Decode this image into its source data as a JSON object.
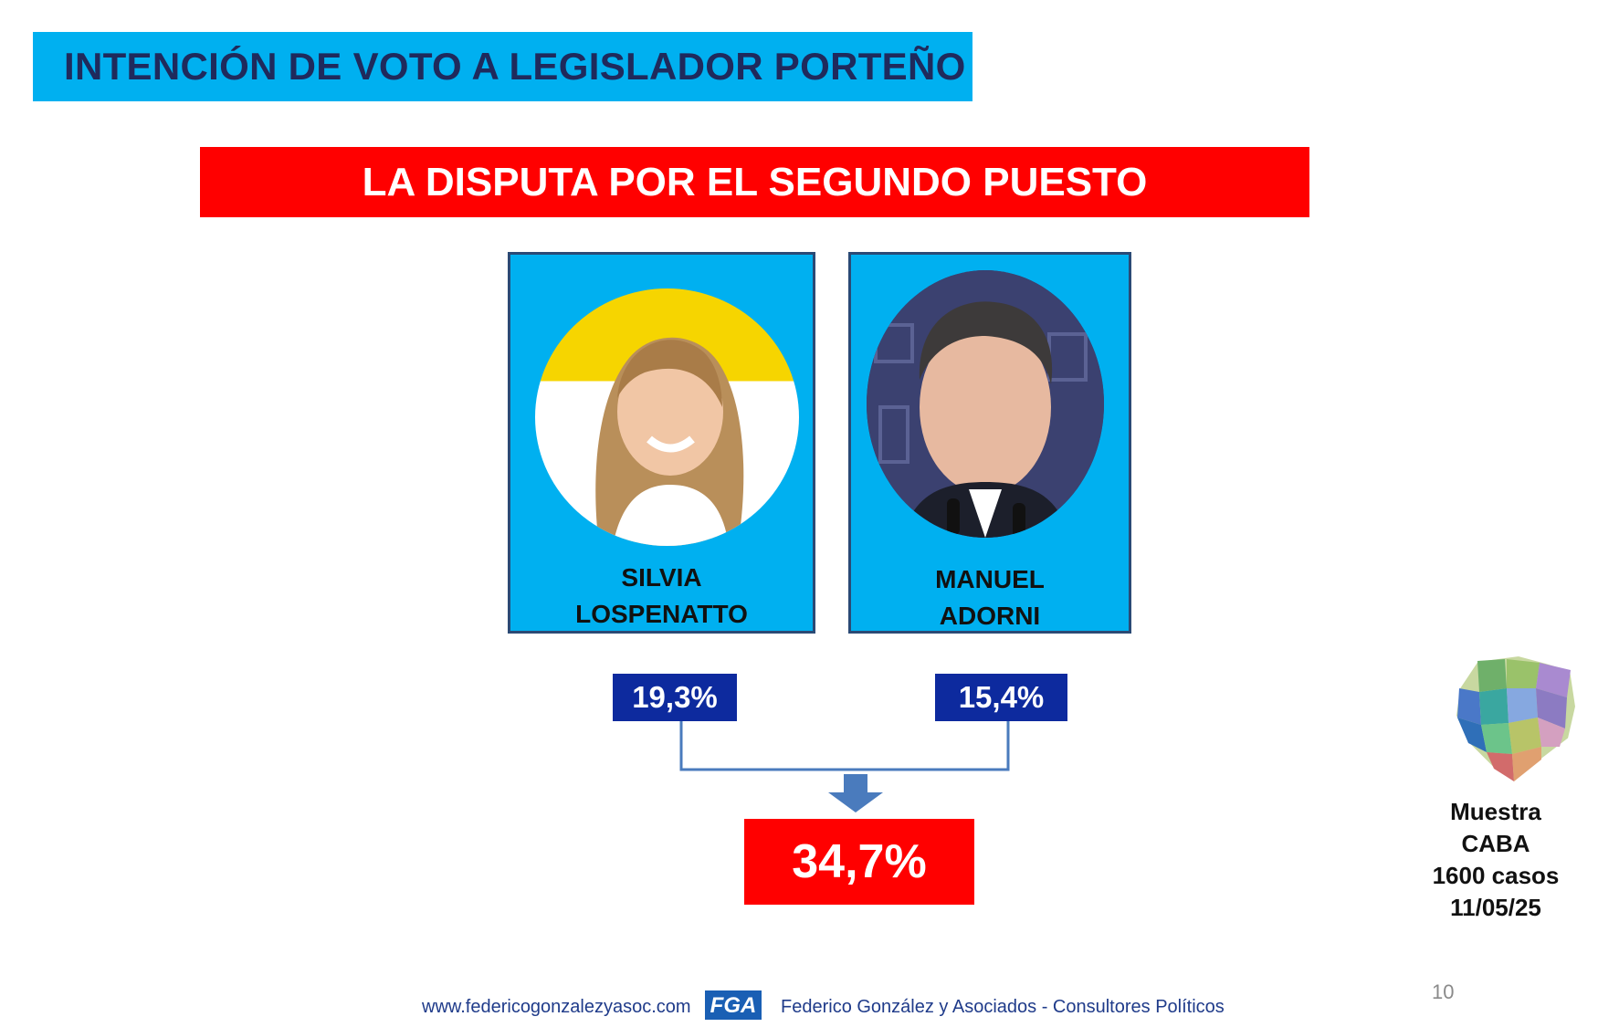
{
  "header": {
    "title": "INTENCIÓN DE VOTO A LEGISLADOR PORTEÑO",
    "subtitle": "LA DISPUTA POR EL SEGUNDO PUESTO"
  },
  "candidates": [
    {
      "name_line1": "SILVIA",
      "name_line2": "LOSPENATTO",
      "percent": "19,3%"
    },
    {
      "name_line1": "MANUEL",
      "name_line2": "ADORNI",
      "percent": "15,4%"
    }
  ],
  "total": {
    "percent": "34,7%"
  },
  "sample": {
    "line1": "Muestra",
    "line2": "CABA",
    "line3": "1600 casos",
    "line4": "11/05/25"
  },
  "footer": {
    "url": "www.federicogonzalezyasoc.com",
    "logo_text": "FGA",
    "firm": "Federico González y Asociados - Consultores Políticos",
    "page_number": "10"
  },
  "colors": {
    "title_bg": "#00b0f0",
    "title_text": "#1f2a5c",
    "subtitle_bg": "#ff0000",
    "card_bg": "#00b0f0",
    "percent_box_bg": "#0d2a9e",
    "total_bg": "#ff0000",
    "connector": "#4a7bbd"
  }
}
